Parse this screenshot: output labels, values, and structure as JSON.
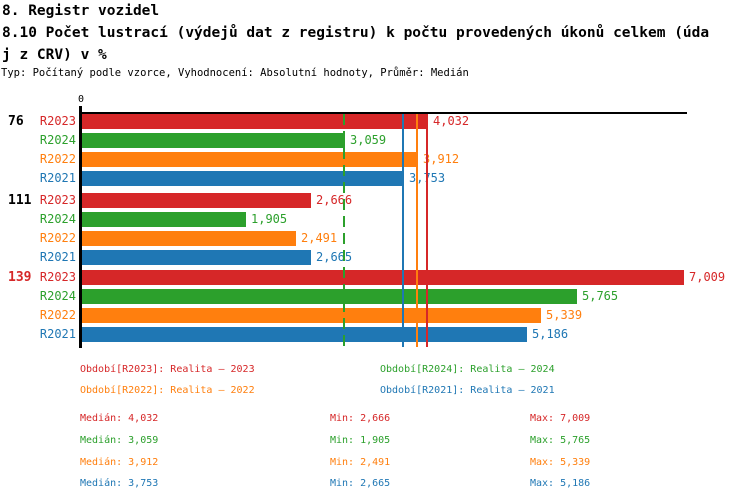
{
  "title": {
    "line1": "8. Registr vozidel",
    "line2": "8.10 Počet lustrací (výdejů dat z registru) k počtu provedených úkonů celkem (úda",
    "line3": "j z CRV) v %",
    "subtitle": "Typ: Počítaný podle vzorce, Vyhodnocení: Absolutní hodnoty, Průměr: Medián"
  },
  "chart_data": {
    "type": "bar",
    "orientation": "horizontal",
    "title": "8.10 Počet lustrací (výdejů dat z registru) k počtu provedených úkonů celkem (údaj z CRV) v %",
    "categories": [
      "76",
      "111",
      "139"
    ],
    "category_label_colors": [
      "#000000",
      "#000000",
      "#d62728"
    ],
    "xlim": [
      0,
      7100
    ],
    "x_tick_labels": [
      "0"
    ],
    "zero_tick": "0",
    "grid": false,
    "legend_position": "bottom",
    "series": [
      {
        "name": "R2023",
        "legend": "Období[R2023]: Realita – 2023",
        "color": "#d62728",
        "values": [
          4032,
          2666,
          7009
        ],
        "value_labels": [
          "4,032",
          "2,666",
          "7,009"
        ]
      },
      {
        "name": "R2024",
        "legend": "Období[R2024]: Realita – 2024",
        "color": "#2ca02c",
        "values": [
          3059,
          1905,
          5765
        ],
        "value_labels": [
          "3,059",
          "1,905",
          "5,765"
        ]
      },
      {
        "name": "R2022",
        "legend": "Období[R2022]: Realita – 2022",
        "color": "#ff7f0e",
        "values": [
          3912,
          2491,
          5339
        ],
        "value_labels": [
          "3,912",
          "2,491",
          "5,339"
        ]
      },
      {
        "name": "R2021",
        "legend": "Období[R2021]: Realita – 2021",
        "color": "#1f77b4",
        "values": [
          3753,
          2665,
          5186
        ],
        "value_labels": [
          "3,753",
          "2,665",
          "5,186"
        ]
      }
    ],
    "median_lines": [
      {
        "series": "R2024",
        "value": 3059,
        "color": "#2ca02c",
        "style": "dashed"
      },
      {
        "series": "R2021",
        "value": 3753,
        "color": "#1f77b4",
        "style": "solid"
      },
      {
        "series": "R2022",
        "value": 3912,
        "color": "#ff7f0e",
        "style": "solid"
      },
      {
        "series": "R2023",
        "value": 4032,
        "color": "#d62728",
        "style": "solid"
      }
    ]
  },
  "legend": {
    "items": [
      {
        "text": "Období[R2023]: Realita – 2023",
        "color": "#d62728"
      },
      {
        "text": "Období[R2024]: Realita – 2024",
        "color": "#2ca02c"
      },
      {
        "text": "Období[R2022]: Realita – 2022",
        "color": "#ff7f0e"
      },
      {
        "text": "Období[R2021]: Realita – 2021",
        "color": "#1f77b4"
      }
    ]
  },
  "stats": {
    "rows": [
      {
        "color": "#d62728",
        "median": "Medián: 4,032",
        "min": "Min: 2,666",
        "max": "Max: 7,009"
      },
      {
        "color": "#2ca02c",
        "median": "Medián: 3,059",
        "min": "Min: 1,905",
        "max": "Max: 5,765"
      },
      {
        "color": "#ff7f0e",
        "median": "Medián: 3,912",
        "min": "Min: 2,491",
        "max": "Max: 5,339"
      },
      {
        "color": "#1f77b4",
        "median": "Medián: 3,753",
        "min": "Min: 2,665",
        "max": "Max: 5,186"
      }
    ]
  }
}
